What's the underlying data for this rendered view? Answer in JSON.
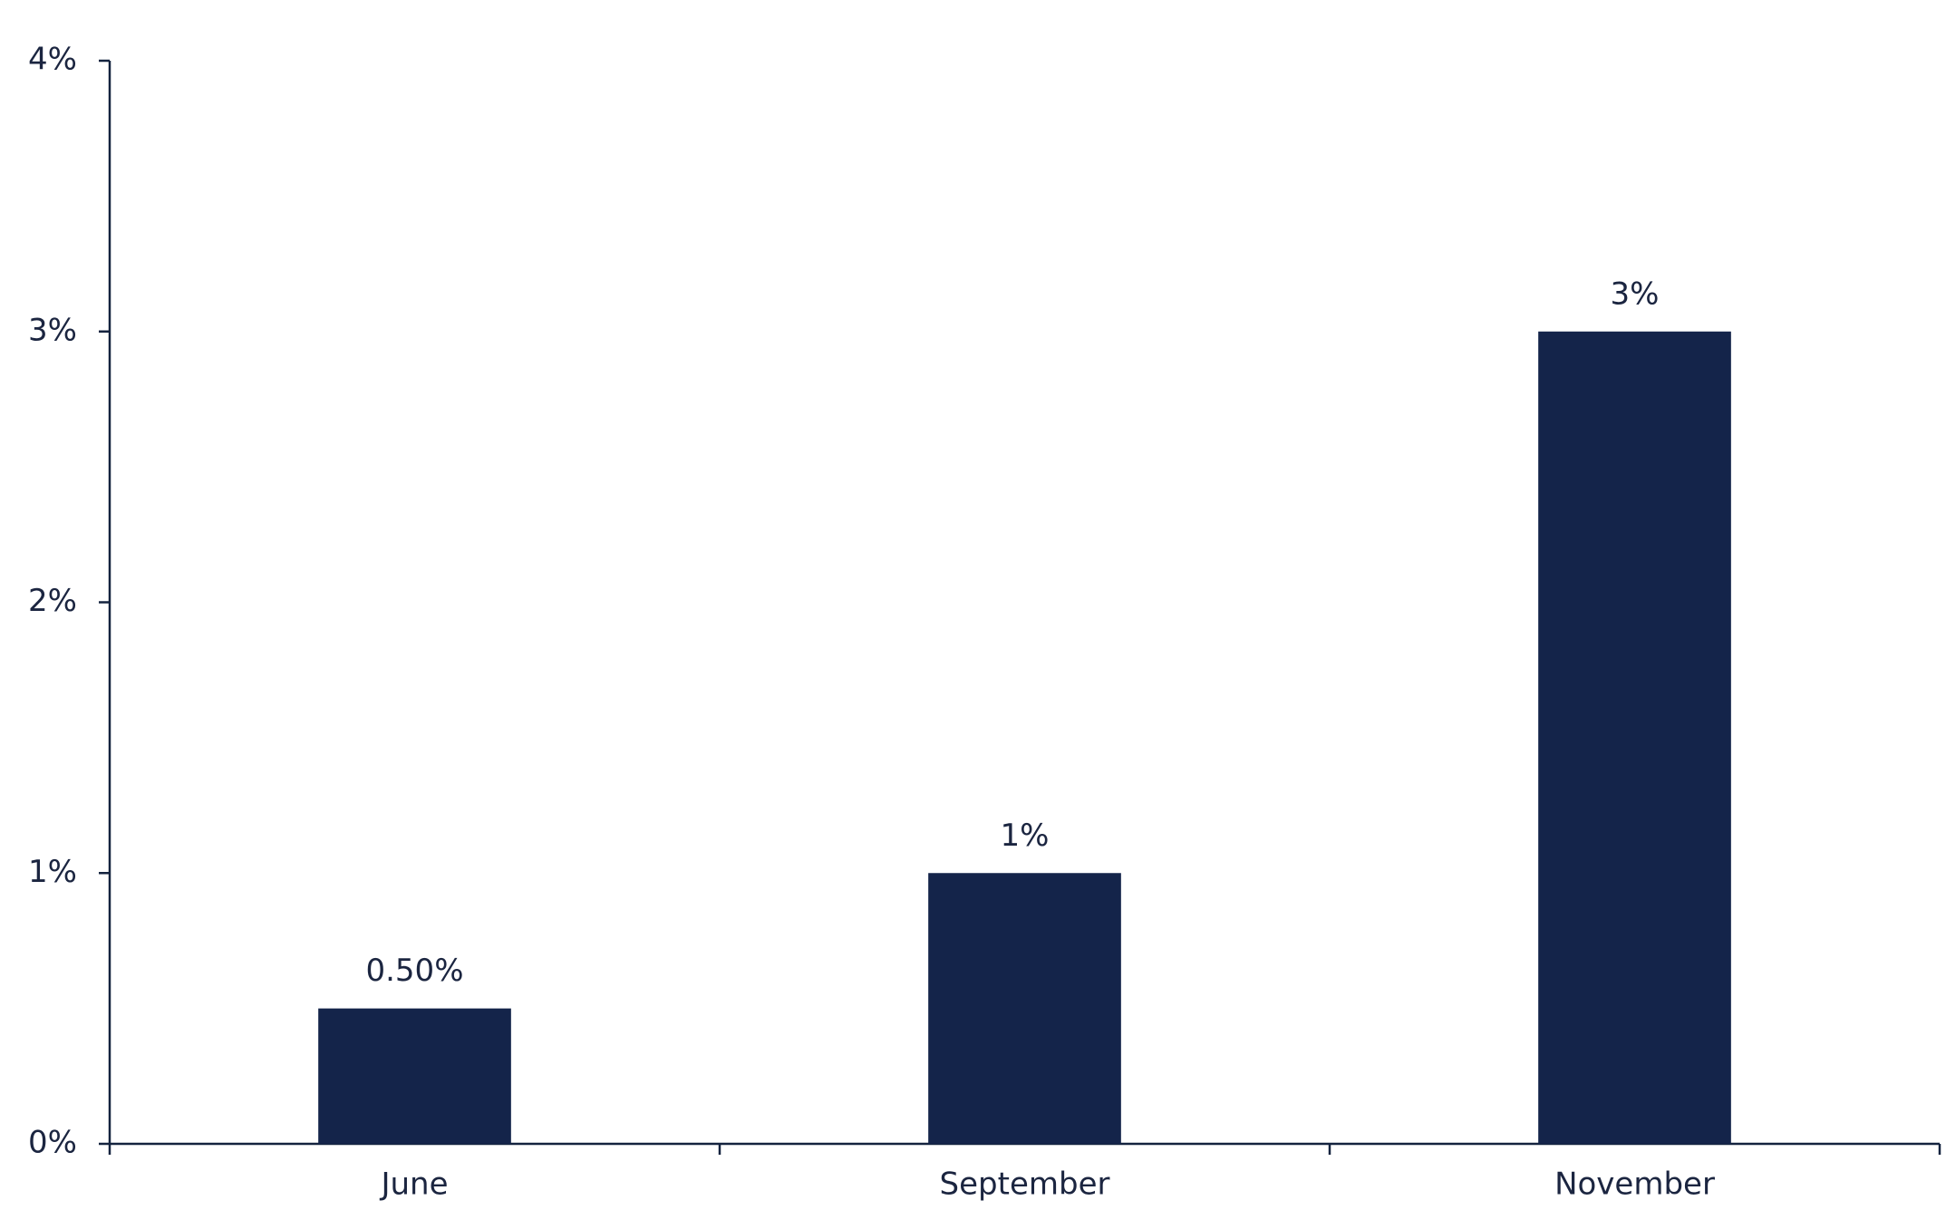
{
  "chart_data": {
    "type": "bar",
    "categories": [
      "June",
      "September",
      "November"
    ],
    "values": [
      0.5,
      1,
      3
    ],
    "value_labels": [
      "0.50%",
      "1%",
      "3%"
    ],
    "color": "#14244a",
    "ylim": [
      0,
      4
    ],
    "yticks": [
      {
        "value": 0,
        "label": "0%"
      },
      {
        "value": 1,
        "label": "1%"
      },
      {
        "value": 2,
        "label": "2%"
      },
      {
        "value": 3,
        "label": "3%"
      },
      {
        "value": 4,
        "label": "4%"
      }
    ],
    "grid": false
  }
}
